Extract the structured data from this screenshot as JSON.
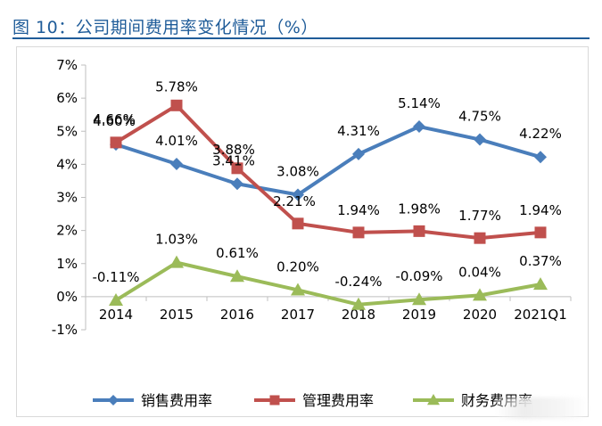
{
  "figure": {
    "title": "图 10：公司期间费用率变化情况（%）",
    "title_color": "#1f5c99"
  },
  "chart_data": {
    "type": "line",
    "title": "",
    "xlabel": "",
    "ylabel": "",
    "categories": [
      "2014",
      "2015",
      "2016",
      "2017",
      "2018",
      "2019",
      "2020",
      "2021Q1"
    ],
    "ylim": [
      -1,
      7
    ],
    "yticks": [
      -1,
      0,
      1,
      2,
      3,
      4,
      5,
      6,
      7
    ],
    "ytick_labels": [
      "-1%",
      "0%",
      "1%",
      "2%",
      "3%",
      "4%",
      "5%",
      "6%",
      "7%"
    ],
    "grid": false,
    "legend_position": "bottom",
    "series": [
      {
        "name": "销售费用率",
        "color": "#4a7ebb",
        "marker": "diamond",
        "values": [
          4.6,
          4.01,
          3.41,
          3.08,
          4.31,
          5.14,
          4.75,
          4.22
        ],
        "labels": [
          "4.60%",
          "4.01%",
          "3.41%",
          "3.08%",
          "4.31%",
          "5.14%",
          "4.75%",
          "4.22%"
        ]
      },
      {
        "name": "管理费用率",
        "color": "#c0504d",
        "marker": "square",
        "values": [
          4.66,
          5.78,
          3.88,
          2.21,
          1.94,
          1.98,
          1.77,
          1.94
        ],
        "labels": [
          "4.66%",
          "5.78%",
          "3.88%",
          "2.21%",
          "1.94%",
          "1.98%",
          "1.77%",
          "1.94%"
        ]
      },
      {
        "name": "财务费用率",
        "color": "#9bbb59",
        "marker": "triangle",
        "values": [
          -0.11,
          1.03,
          0.61,
          0.2,
          -0.24,
          -0.09,
          0.04,
          0.37
        ],
        "labels": [
          "-0.11%",
          "1.03%",
          "0.61%",
          "0.20%",
          "-0.24%",
          "-0.09%",
          "0.04%",
          "0.37%"
        ]
      }
    ]
  }
}
